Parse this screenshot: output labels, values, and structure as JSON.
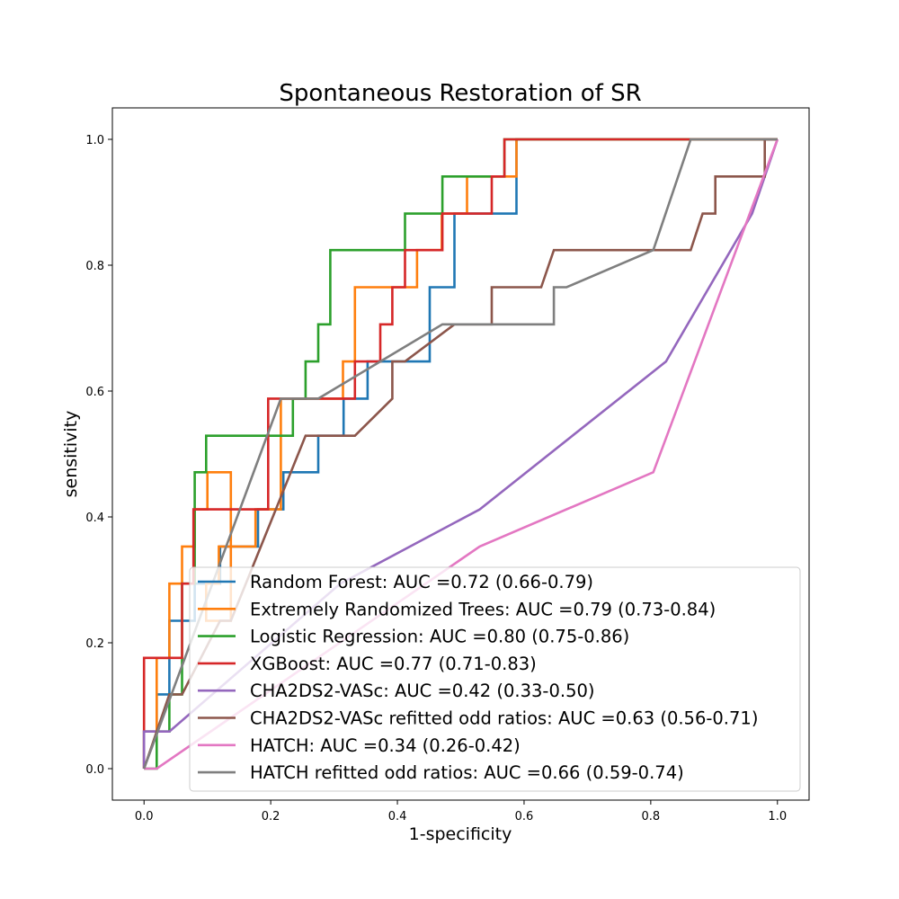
{
  "chart_data": {
    "type": "line",
    "title": "Spontaneous Restoration of SR",
    "xlabel": "1-specificity",
    "ylabel": "sensitivity",
    "xlim": [
      -0.05,
      1.05
    ],
    "ylim": [
      -0.05,
      1.05
    ],
    "xticks": [
      "0.0",
      "0.2",
      "0.4",
      "0.6",
      "0.8",
      "1.0"
    ],
    "yticks": [
      "0.0",
      "0.2",
      "0.4",
      "0.6",
      "0.8",
      "1.0"
    ],
    "grid": false,
    "legend_position": "lower-right",
    "series": [
      {
        "name": "Random Forest: AUC =0.72 (0.66-0.79)",
        "color": "#1f77b4",
        "points": [
          [
            0,
            0
          ],
          [
            0,
            0.059
          ],
          [
            0.02,
            0.059
          ],
          [
            0.02,
            0.118
          ],
          [
            0.04,
            0.118
          ],
          [
            0.04,
            0.235
          ],
          [
            0.08,
            0.235
          ],
          [
            0.08,
            0.294
          ],
          [
            0.1,
            0.294
          ],
          [
            0.1,
            0.294
          ],
          [
            0.12,
            0.294
          ],
          [
            0.12,
            0.353
          ],
          [
            0.18,
            0.353
          ],
          [
            0.18,
            0.412
          ],
          [
            0.22,
            0.412
          ],
          [
            0.22,
            0.471
          ],
          [
            0.275,
            0.471
          ],
          [
            0.275,
            0.529
          ],
          [
            0.315,
            0.529
          ],
          [
            0.315,
            0.588
          ],
          [
            0.353,
            0.588
          ],
          [
            0.353,
            0.647
          ],
          [
            0.451,
            0.647
          ],
          [
            0.451,
            0.765
          ],
          [
            0.49,
            0.765
          ],
          [
            0.49,
            0.882
          ],
          [
            0.588,
            0.882
          ],
          [
            0.588,
            1.0
          ],
          [
            1.0,
            1.0
          ]
        ]
      },
      {
        "name": "Extremely Randomized Trees: AUC =0.79 (0.73-0.84)",
        "color": "#ff7f0e",
        "points": [
          [
            0,
            0
          ],
          [
            0,
            0.059
          ],
          [
            0.02,
            0.059
          ],
          [
            0.02,
            0.176
          ],
          [
            0.04,
            0.176
          ],
          [
            0.04,
            0.294
          ],
          [
            0.06,
            0.294
          ],
          [
            0.06,
            0.353
          ],
          [
            0.08,
            0.353
          ],
          [
            0.08,
            0.412
          ],
          [
            0.1,
            0.412
          ],
          [
            0.1,
            0.471
          ],
          [
            0.137,
            0.471
          ],
          [
            0.137,
            0.235
          ],
          [
            0.098,
            0.235
          ],
          [
            0.098,
            0.294
          ],
          [
            0.118,
            0.294
          ],
          [
            0.118,
            0.353
          ],
          [
            0.176,
            0.353
          ],
          [
            0.176,
            0.412
          ],
          [
            0.216,
            0.412
          ],
          [
            0.216,
            0.588
          ],
          [
            0.314,
            0.588
          ],
          [
            0.314,
            0.647
          ],
          [
            0.333,
            0.647
          ],
          [
            0.333,
            0.765
          ],
          [
            0.431,
            0.765
          ],
          [
            0.431,
            0.824
          ],
          [
            0.47,
            0.824
          ],
          [
            0.47,
            0.882
          ],
          [
            0.51,
            0.882
          ],
          [
            0.51,
            0.941
          ],
          [
            0.588,
            0.941
          ],
          [
            0.588,
            1.0
          ],
          [
            1.0,
            1.0
          ]
        ]
      },
      {
        "name": "Logistic Regression: AUC =0.80 (0.75-0.86)",
        "color": "#2ca02c",
        "points": [
          [
            0,
            0
          ],
          [
            0.02,
            0
          ],
          [
            0.02,
            0.059
          ],
          [
            0.04,
            0.059
          ],
          [
            0.04,
            0.118
          ],
          [
            0.06,
            0.118
          ],
          [
            0.06,
            0.294
          ],
          [
            0.08,
            0.294
          ],
          [
            0.08,
            0.471
          ],
          [
            0.098,
            0.471
          ],
          [
            0.098,
            0.529
          ],
          [
            0.235,
            0.529
          ],
          [
            0.235,
            0.588
          ],
          [
            0.255,
            0.588
          ],
          [
            0.255,
            0.647
          ],
          [
            0.275,
            0.647
          ],
          [
            0.275,
            0.706
          ],
          [
            0.294,
            0.706
          ],
          [
            0.294,
            0.824
          ],
          [
            0.412,
            0.824
          ],
          [
            0.412,
            0.882
          ],
          [
            0.471,
            0.882
          ],
          [
            0.471,
            0.941
          ],
          [
            0.569,
            0.941
          ],
          [
            0.569,
            1.0
          ],
          [
            1.0,
            1.0
          ]
        ]
      },
      {
        "name": "XGBoost: AUC =0.77 (0.71-0.83)",
        "color": "#d62728",
        "points": [
          [
            0,
            0
          ],
          [
            0,
            0.176
          ],
          [
            0.06,
            0.176
          ],
          [
            0.06,
            0.294
          ],
          [
            0.078,
            0.294
          ],
          [
            0.078,
            0.412
          ],
          [
            0.196,
            0.412
          ],
          [
            0.196,
            0.588
          ],
          [
            0.333,
            0.588
          ],
          [
            0.333,
            0.647
          ],
          [
            0.373,
            0.647
          ],
          [
            0.373,
            0.706
          ],
          [
            0.392,
            0.706
          ],
          [
            0.392,
            0.765
          ],
          [
            0.412,
            0.765
          ],
          [
            0.412,
            0.824
          ],
          [
            0.471,
            0.824
          ],
          [
            0.471,
            0.882
          ],
          [
            0.549,
            0.882
          ],
          [
            0.549,
            0.941
          ],
          [
            0.569,
            0.941
          ],
          [
            0.569,
            1.0
          ],
          [
            1.0,
            1.0
          ]
        ]
      },
      {
        "name": "CHA2DS2-VASc: AUC =0.42 (0.33-0.50)",
        "color": "#9467bd",
        "points": [
          [
            0,
            0
          ],
          [
            0,
            0.059
          ],
          [
            0.04,
            0.059
          ],
          [
            0.31,
            0.294
          ],
          [
            0.53,
            0.412
          ],
          [
            0.824,
            0.647
          ],
          [
            0.96,
            0.882
          ],
          [
            1.0,
            1.0
          ]
        ]
      },
      {
        "name": "CHA2DS2-VASc refitted odd ratios: AUC =0.63 (0.56-0.71)",
        "color": "#8c564b",
        "points": [
          [
            0,
            0
          ],
          [
            0.04,
            0.118
          ],
          [
            0.06,
            0.118
          ],
          [
            0.12,
            0.235
          ],
          [
            0.137,
            0.235
          ],
          [
            0.255,
            0.529
          ],
          [
            0.333,
            0.529
          ],
          [
            0.392,
            0.588
          ],
          [
            0.392,
            0.647
          ],
          [
            0.412,
            0.647
          ],
          [
            0.49,
            0.706
          ],
          [
            0.549,
            0.706
          ],
          [
            0.549,
            0.765
          ],
          [
            0.627,
            0.765
          ],
          [
            0.647,
            0.824
          ],
          [
            0.863,
            0.824
          ],
          [
            0.882,
            0.882
          ],
          [
            0.902,
            0.882
          ],
          [
            0.902,
            0.941
          ],
          [
            0.98,
            0.941
          ],
          [
            0.98,
            1.0
          ],
          [
            1.0,
            1.0
          ]
        ]
      },
      {
        "name": "HATCH: AUC =0.34 (0.26-0.42)",
        "color": "#e377c2",
        "points": [
          [
            0,
            0
          ],
          [
            0.02,
            0
          ],
          [
            0.53,
            0.353
          ],
          [
            0.804,
            0.471
          ],
          [
            1.0,
            1.0
          ]
        ]
      },
      {
        "name": "HATCH refitted odd ratios: AUC =0.66 (0.59-0.74)",
        "color": "#7f7f7f",
        "points": [
          [
            0,
            0
          ],
          [
            0.216,
            0.588
          ],
          [
            0.275,
            0.588
          ],
          [
            0.471,
            0.706
          ],
          [
            0.647,
            0.706
          ],
          [
            0.647,
            0.765
          ],
          [
            0.667,
            0.765
          ],
          [
            0.804,
            0.824
          ],
          [
            0.863,
            1.0
          ],
          [
            1.0,
            1.0
          ]
        ]
      }
    ]
  }
}
